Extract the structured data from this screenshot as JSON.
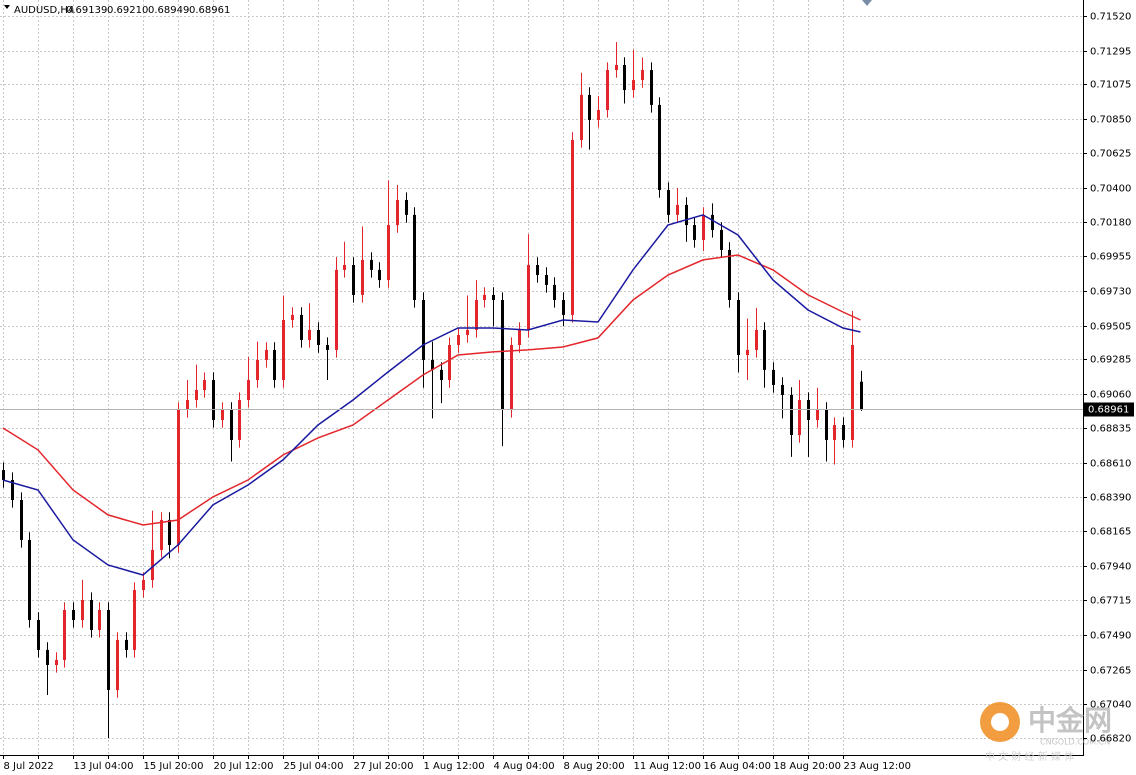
{
  "chart_data": {
    "type": "candlestick",
    "symbol": "AUDUSD,H4",
    "ohlc_labels": [
      "0.69139",
      "0.69210",
      "0.68949",
      "0.68961"
    ],
    "up_color": "#e3262b",
    "down_color": "#000000",
    "categories": [
      "8 Jul 2022",
      null,
      null,
      null,
      null,
      null,
      null,
      null,
      "13 Jul 04:00",
      null,
      null,
      null,
      null,
      null,
      null,
      null,
      "15 Jul 20:00",
      null,
      null,
      null,
      null,
      null,
      null,
      null,
      "20 Jul 12:00",
      null,
      null,
      null,
      null,
      null,
      null,
      null,
      "25 Jul 04:00",
      null,
      null,
      null,
      null,
      null,
      null,
      null,
      "27 Jul 20:00",
      null,
      null,
      null,
      null,
      null,
      null,
      null,
      "1 Aug 12:00",
      null,
      null,
      null,
      null,
      null,
      null,
      null,
      "4 Aug 04:00",
      null,
      null,
      null,
      null,
      null,
      null,
      null,
      "8 Aug 20:00",
      null,
      null,
      null,
      null,
      null,
      null,
      null,
      "11 Aug 12:00",
      null,
      null,
      null,
      null,
      null,
      null,
      null,
      "16 Aug 04:00",
      null,
      null,
      null,
      null,
      null,
      null,
      null,
      "18 Aug 20:00",
      null,
      null,
      null,
      null,
      null,
      null,
      null,
      "23 Aug 12:00",
      null,
      null
    ],
    "open": [
      0.68564,
      0.68499,
      0.68369,
      0.68109,
      0.67588,
      0.67393,
      0.67295,
      0.67328,
      0.67653,
      0.67588,
      0.67718,
      0.67523,
      0.67653,
      0.67132,
      0.67458,
      0.67393,
      0.67783,
      0.67848,
      0.68044,
      0.68239,
      0.68076,
      0.68955,
      0.6902,
      0.69085,
      0.6915,
      0.6889,
      0.68955,
      0.6876,
      0.6902,
      0.6915,
      0.69281,
      0.69346,
      0.6915,
      0.69541,
      0.69574,
      0.69411,
      0.69476,
      0.69378,
      0.69346,
      0.69867,
      0.69899,
      0.69704,
      0.69932,
      0.69867,
      0.69801,
      0.70159,
      0.70322,
      0.70225,
      0.69671,
      0.69281,
      0.69216,
      0.6915,
      0.69378,
      0.69443,
      0.69476,
      0.69671,
      0.69704,
      0.69671,
      0.68955,
      0.69378,
      0.69476,
      0.69899,
      0.69834,
      0.69769,
      0.69671,
      0.69574,
      0.70713,
      0.71006,
      0.70843,
      0.70908,
      0.71168,
      0.71201,
      0.71038,
      0.71103,
      0.71168,
      0.70941,
      0.70387,
      0.70225,
      0.7029,
      0.70159,
      0.70062,
      0.70225,
      0.70127,
      0.69997,
      0.69671,
      0.69313,
      0.69346,
      0.69476,
      0.69216,
      0.69118,
      0.69053,
      0.68792,
      0.6902,
      0.6889,
      0.68955,
      0.6876,
      0.68857,
      0.6876,
      0.69139
    ],
    "high": [
      0.68614,
      0.68549,
      0.68419,
      0.68159,
      0.67638,
      0.67443,
      0.67378,
      0.67703,
      0.67703,
      0.6785,
      0.67768,
      0.67703,
      0.67703,
      0.67508,
      0.67508,
      0.67833,
      0.67898,
      0.683,
      0.68289,
      0.68289,
      0.69005,
      0.6915,
      0.6925,
      0.692,
      0.692,
      0.69005,
      0.69005,
      0.6907,
      0.693,
      0.694,
      0.69396,
      0.69396,
      0.697,
      0.69624,
      0.69624,
      0.6965,
      0.69526,
      0.69428,
      0.6995,
      0.7005,
      0.69949,
      0.7015,
      0.69982,
      0.69917,
      0.7045,
      0.7042,
      0.70372,
      0.70275,
      0.69721,
      0.694,
      0.69266,
      0.69428,
      0.69493,
      0.697,
      0.698,
      0.69754,
      0.69754,
      0.69721,
      0.69428,
      0.69526,
      0.701,
      0.69949,
      0.69884,
      0.69819,
      0.69721,
      0.70763,
      0.7115,
      0.71056,
      0.71,
      0.71218,
      0.7135,
      0.71251,
      0.713,
      0.7125,
      0.71218,
      0.70991,
      0.70437,
      0.704,
      0.7034,
      0.70209,
      0.70275,
      0.703,
      0.70177,
      0.70047,
      0.69721,
      0.6955,
      0.6962,
      0.69526,
      0.69266,
      0.69168,
      0.69103,
      0.6915,
      0.6907,
      0.691,
      0.69005,
      0.68907,
      0.68907,
      0.696,
      0.6921
    ],
    "low": [
      0.68449,
      0.68319,
      0.68059,
      0.67538,
      0.67343,
      0.671,
      0.67245,
      0.67278,
      0.67538,
      0.67538,
      0.67473,
      0.67473,
      0.6682,
      0.67082,
      0.67343,
      0.67343,
      0.67733,
      0.67798,
      0.67994,
      0.6799,
      0.68026,
      0.68905,
      0.6897,
      0.69035,
      0.6884,
      0.6884,
      0.6862,
      0.6871,
      0.6897,
      0.691,
      0.69231,
      0.691,
      0.691,
      0.69491,
      0.69361,
      0.69361,
      0.69328,
      0.6915,
      0.69296,
      0.69817,
      0.69654,
      0.69654,
      0.69817,
      0.69751,
      0.69751,
      0.70109,
      0.70175,
      0.69621,
      0.691,
      0.689,
      0.69,
      0.691,
      0.69328,
      0.69393,
      0.69426,
      0.69621,
      0.695,
      0.6872,
      0.68905,
      0.69328,
      0.69426,
      0.69784,
      0.69719,
      0.69621,
      0.695,
      0.69524,
      0.70663,
      0.7065,
      0.70793,
      0.70858,
      0.71118,
      0.7095,
      0.70988,
      0.71053,
      0.70891,
      0.70337,
      0.70175,
      0.70175,
      0.7005,
      0.70012,
      0.6999,
      0.70077,
      0.69947,
      0.69621,
      0.692,
      0.6915,
      0.69296,
      0.691,
      0.69068,
      0.689,
      0.6865,
      0.68742,
      0.6865,
      0.6884,
      0.6862,
      0.686,
      0.6871,
      0.6871,
      0.68949
    ],
    "close": [
      0.68499,
      0.68369,
      0.68109,
      0.67588,
      0.67393,
      0.67295,
      0.67328,
      0.67653,
      0.67588,
      0.67718,
      0.67523,
      0.67653,
      0.67132,
      0.67458,
      0.67393,
      0.67783,
      0.67848,
      0.68044,
      0.68239,
      0.68076,
      0.68955,
      0.6902,
      0.69085,
      0.6915,
      0.6889,
      0.68955,
      0.6876,
      0.6902,
      0.6915,
      0.69281,
      0.69346,
      0.6915,
      0.69541,
      0.69574,
      0.69411,
      0.69476,
      0.69378,
      0.69346,
      0.69867,
      0.69899,
      0.69704,
      0.69932,
      0.69867,
      0.69801,
      0.70159,
      0.70322,
      0.70225,
      0.69671,
      0.69281,
      0.69216,
      0.6915,
      0.69378,
      0.69443,
      0.69476,
      0.69671,
      0.69704,
      0.69671,
      0.68955,
      0.69378,
      0.69476,
      0.69899,
      0.69834,
      0.69769,
      0.69671,
      0.69574,
      0.70713,
      0.71006,
      0.70843,
      0.70908,
      0.71168,
      0.71201,
      0.71038,
      0.71103,
      0.71168,
      0.70941,
      0.70387,
      0.70225,
      0.7029,
      0.70159,
      0.70062,
      0.70225,
      0.70127,
      0.69997,
      0.69671,
      0.69313,
      0.69346,
      0.69476,
      0.69216,
      0.69118,
      0.69053,
      0.68792,
      0.6902,
      0.6889,
      0.68955,
      0.6876,
      0.68857,
      0.6876,
      0.69378,
      0.68961
    ],
    "series": [
      {
        "color": "#e3262b",
        "x": [
          0,
          4,
          8,
          12,
          16,
          20,
          24,
          28,
          32,
          36,
          40,
          44,
          48,
          52,
          56,
          60,
          64,
          68,
          72,
          76,
          80,
          84,
          88,
          92,
          96,
          98
        ],
        "values": [
          0.68838,
          0.68695,
          0.68434,
          0.68272,
          0.68206,
          0.68239,
          0.68389,
          0.68499,
          0.68662,
          0.68773,
          0.68857,
          0.6902,
          0.69183,
          0.69313,
          0.69333,
          0.69346,
          0.69365,
          0.69424,
          0.69671,
          0.69834,
          0.69932,
          0.69964,
          0.69867,
          0.69704,
          0.69593,
          0.69541
        ]
      },
      {
        "color": "#1a1aa0",
        "x": [
          0,
          4,
          8,
          12,
          16,
          20,
          24,
          28,
          32,
          36,
          40,
          44,
          48,
          52,
          56,
          60,
          64,
          68,
          72,
          76,
          80,
          84,
          88,
          92,
          96,
          98
        ],
        "values": [
          0.68499,
          0.68434,
          0.68109,
          0.67946,
          0.67881,
          0.68076,
          0.68337,
          0.68467,
          0.6863,
          0.68857,
          0.6902,
          0.69202,
          0.69378,
          0.69489,
          0.69489,
          0.69476,
          0.69541,
          0.69528,
          0.69867,
          0.70159,
          0.70225,
          0.70094,
          0.69801,
          0.69606,
          0.69489,
          0.69463
        ]
      }
    ],
    "ylim": [
      0.66709,
      0.71624
    ],
    "yticks": [
      {
        "value": 0.7152,
        "label": "0.71520"
      },
      0.71295,
      0.71075,
      {
        "value": 0.7085,
        "label": "0.70850"
      },
      0.70625,
      {
        "value": 0.704,
        "label": "0.70400"
      },
      {
        "value": 0.7018,
        "label": "0.70180"
      },
      0.69955,
      {
        "value": 0.6973,
        "label": "0.69730"
      },
      0.69505,
      0.69285,
      {
        "value": 0.6906,
        "label": "0.69060"
      },
      0.68835,
      {
        "value": 0.6861,
        "label": "0.68610"
      },
      {
        "value": 0.6839,
        "label": "0.68390"
      },
      0.68165,
      {
        "value": 0.6794,
        "label": "0.67940"
      },
      0.67715,
      {
        "value": 0.6749,
        "label": "0.67490"
      },
      0.67265,
      {
        "value": 0.6704,
        "label": "0.67040"
      },
      {
        "value": 0.6682,
        "label": "0.66820"
      }
    ],
    "grid": true
  },
  "watermark": {
    "brand": "中金网",
    "site": "CNGOLD.COM.CN",
    "slogan": "中 文 财 经 新 媒 体"
  }
}
